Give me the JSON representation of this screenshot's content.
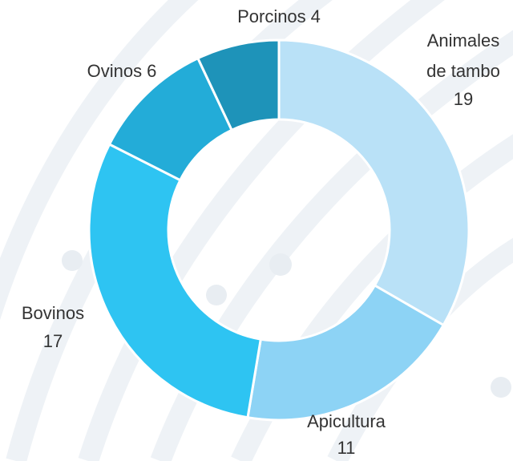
{
  "chart_data": {
    "type": "donut",
    "categories": [
      "Animales de tambo",
      "Apicultura",
      "Bovinos",
      "Ovinos",
      "Porcinos"
    ],
    "values": [
      19,
      11,
      17,
      6,
      4
    ],
    "colors": [
      "#b9e1f7",
      "#8dd3f5",
      "#2ec4f2",
      "#23acd8",
      "#1e93b9"
    ]
  }
}
